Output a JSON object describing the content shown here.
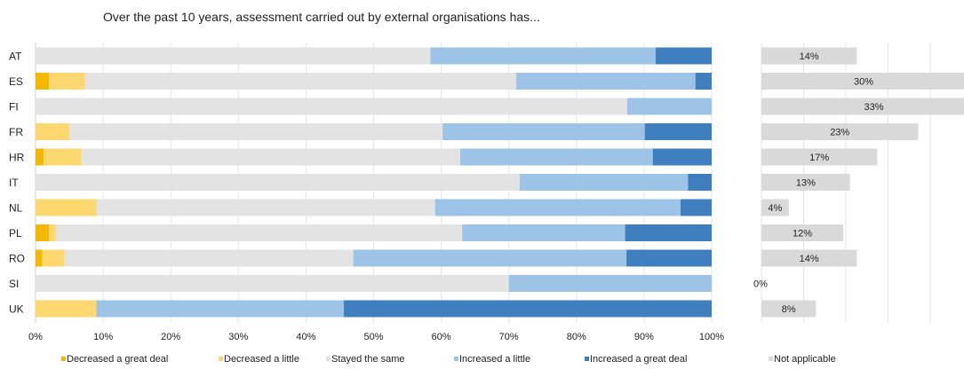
{
  "chart_data": {
    "type": "bar",
    "orientation": "horizontal",
    "stacked": true,
    "title": "Over the past 10 years, assessment carried out by external organisations has...",
    "categories": [
      "AT",
      "ES",
      "FI",
      "FR",
      "HR",
      "IT",
      "NL",
      "PL",
      "RO",
      "SI",
      "UK"
    ],
    "series": [
      {
        "name": "Decreased a great deal",
        "color": "#F5B800",
        "values": [
          0,
          2,
          0,
          0,
          1.2,
          0,
          0,
          2,
          1,
          0,
          0
        ]
      },
      {
        "name": "Decreased a little",
        "color": "#FDD870",
        "values": [
          0,
          5.3,
          0,
          5,
          5.6,
          0,
          9,
          1,
          3.3,
          0,
          9
        ]
      },
      {
        "name": "Stayed the same",
        "color": "#E3E3E3",
        "values": [
          58.4,
          63.8,
          87.5,
          55.2,
          56,
          71.6,
          50.1,
          60.1,
          42.7,
          70,
          0
        ]
      },
      {
        "name": "Increased a little",
        "color": "#9DC3E6",
        "values": [
          33.3,
          26.5,
          12.5,
          29.9,
          28.5,
          24.9,
          36.3,
          24.1,
          40.4,
          30,
          36.6
        ]
      },
      {
        "name": "Increased a great deal",
        "color": "#3F7FBF",
        "values": [
          8.3,
          2.4,
          0,
          9.9,
          8.7,
          3.5,
          4.6,
          12.8,
          12.6,
          0,
          54.4
        ]
      }
    ],
    "xlim": [
      0,
      100
    ],
    "xticks": [
      "0%",
      "10%",
      "20%",
      "30%",
      "40%",
      "50%",
      "60%",
      "70%",
      "80%",
      "90%",
      "100%"
    ],
    "grid": true,
    "not_applicable": {
      "name": "Not applicable",
      "color": "#D9D9D9",
      "values": [
        14,
        30,
        33,
        23,
        17,
        13,
        4,
        12,
        14,
        0,
        8
      ],
      "labels": [
        "14%",
        "30%",
        "33%",
        "23%",
        "17%",
        "13%",
        "4%",
        "12%",
        "14%",
        "0%",
        "8%"
      ]
    },
    "legend_position": "bottom"
  }
}
